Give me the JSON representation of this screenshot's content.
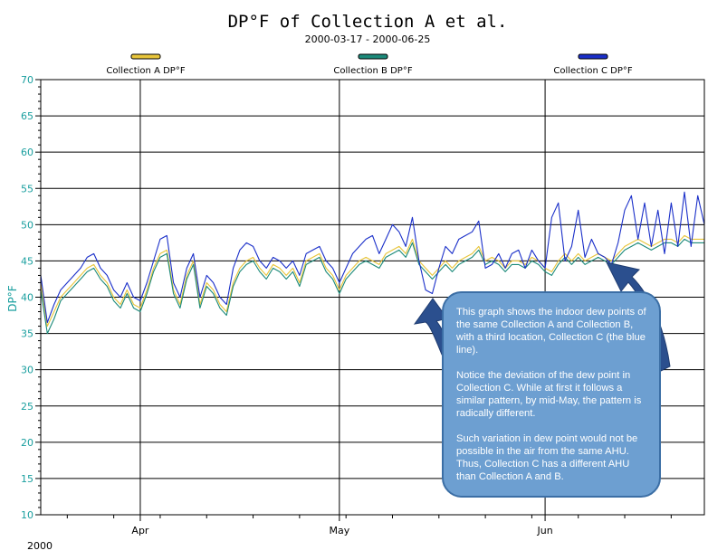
{
  "chart_data": {
    "type": "line",
    "title": "DP°F of Collection A et al.",
    "subtitle": "2000-03-17 - 2000-06-25",
    "ylabel": "DP°F",
    "ylim": [
      10,
      70
    ],
    "yticks": [
      10,
      15,
      20,
      25,
      30,
      35,
      40,
      45,
      50,
      55,
      60,
      65,
      70
    ],
    "xlim_days": [
      0,
      100
    ],
    "xtick_labels": [
      {
        "label": "Apr",
        "day": 15
      },
      {
        "label": "May",
        "day": 45
      },
      {
        "label": "Jun",
        "day": 76
      }
    ],
    "year_label": "2000",
    "legend_position": "top",
    "series": [
      {
        "name": "Collection A  DP°F",
        "color": "#e8c53a",
        "points": [
          [
            0,
            42
          ],
          [
            1,
            36
          ],
          [
            2,
            38
          ],
          [
            3,
            40
          ],
          [
            4,
            41
          ],
          [
            5,
            42
          ],
          [
            6,
            43
          ],
          [
            7,
            44
          ],
          [
            8,
            44.5
          ],
          [
            9,
            43
          ],
          [
            10,
            42
          ],
          [
            11,
            40
          ],
          [
            12,
            39
          ],
          [
            13,
            41
          ],
          [
            14,
            39
          ],
          [
            15,
            38.5
          ],
          [
            16,
            41
          ],
          [
            17,
            44
          ],
          [
            18,
            46
          ],
          [
            19,
            46.5
          ],
          [
            20,
            41
          ],
          [
            21,
            39
          ],
          [
            22,
            43
          ],
          [
            23,
            45
          ],
          [
            24,
            39
          ],
          [
            25,
            42
          ],
          [
            26,
            41
          ],
          [
            27,
            39
          ],
          [
            28,
            38
          ],
          [
            29,
            42
          ],
          [
            30,
            44
          ],
          [
            31,
            45
          ],
          [
            32,
            45.5
          ],
          [
            33,
            44
          ],
          [
            34,
            43
          ],
          [
            35,
            44.5
          ],
          [
            36,
            44
          ],
          [
            37,
            43
          ],
          [
            38,
            44
          ],
          [
            39,
            42
          ],
          [
            40,
            45
          ],
          [
            41,
            45.5
          ],
          [
            42,
            46
          ],
          [
            43,
            44
          ],
          [
            44,
            43
          ],
          [
            45,
            41
          ],
          [
            46,
            43
          ],
          [
            47,
            44
          ],
          [
            48,
            45
          ],
          [
            49,
            45.5
          ],
          [
            50,
            45
          ],
          [
            51,
            44.5
          ],
          [
            52,
            46
          ],
          [
            53,
            46.5
          ],
          [
            54,
            47
          ],
          [
            55,
            46
          ],
          [
            56,
            48
          ],
          [
            57,
            45
          ],
          [
            58,
            44
          ],
          [
            59,
            43
          ],
          [
            60,
            44
          ],
          [
            61,
            45
          ],
          [
            62,
            44
          ],
          [
            63,
            45
          ],
          [
            64,
            45.5
          ],
          [
            65,
            46
          ],
          [
            66,
            47
          ],
          [
            67,
            45
          ],
          [
            68,
            45.5
          ],
          [
            69,
            45
          ],
          [
            70,
            44
          ],
          [
            71,
            45
          ],
          [
            72,
            45
          ],
          [
            73,
            44.5
          ],
          [
            74,
            45.5
          ],
          [
            75,
            45
          ],
          [
            76,
            44
          ],
          [
            77,
            43.5
          ],
          [
            78,
            45
          ],
          [
            79,
            46
          ],
          [
            80,
            45
          ],
          [
            81,
            46
          ],
          [
            82,
            45
          ],
          [
            83,
            45.5
          ],
          [
            84,
            46
          ],
          [
            85,
            45.5
          ],
          [
            86,
            45
          ],
          [
            87,
            46
          ],
          [
            88,
            47
          ],
          [
            89,
            47.5
          ],
          [
            90,
            48
          ],
          [
            91,
            47.5
          ],
          [
            92,
            47
          ],
          [
            93,
            47.5
          ],
          [
            94,
            48
          ],
          [
            95,
            48
          ],
          [
            96,
            47.5
          ],
          [
            97,
            48.5
          ],
          [
            98,
            48
          ],
          [
            99,
            48
          ],
          [
            100,
            48
          ]
        ]
      },
      {
        "name": "Collection B  DP°F",
        "color": "#1c8a7a",
        "points": [
          [
            0,
            41
          ],
          [
            1,
            35
          ],
          [
            2,
            37
          ],
          [
            3,
            39.5
          ],
          [
            4,
            40.5
          ],
          [
            5,
            41.5
          ],
          [
            6,
            42.5
          ],
          [
            7,
            43.5
          ],
          [
            8,
            44
          ],
          [
            9,
            42.5
          ],
          [
            10,
            41.5
          ],
          [
            11,
            39.5
          ],
          [
            12,
            38.5
          ],
          [
            13,
            40.5
          ],
          [
            14,
            38.5
          ],
          [
            15,
            38
          ],
          [
            16,
            40.5
          ],
          [
            17,
            43.5
          ],
          [
            18,
            45.5
          ],
          [
            19,
            46
          ],
          [
            20,
            40.5
          ],
          [
            21,
            38.5
          ],
          [
            22,
            42.5
          ],
          [
            23,
            44.5
          ],
          [
            24,
            38.5
          ],
          [
            25,
            41.5
          ],
          [
            26,
            40.5
          ],
          [
            27,
            38.5
          ],
          [
            28,
            37.5
          ],
          [
            29,
            41.5
          ],
          [
            30,
            43.5
          ],
          [
            31,
            44.5
          ],
          [
            32,
            45
          ],
          [
            33,
            43.5
          ],
          [
            34,
            42.5
          ],
          [
            35,
            44
          ],
          [
            36,
            43.5
          ],
          [
            37,
            42.5
          ],
          [
            38,
            43.5
          ],
          [
            39,
            41.5
          ],
          [
            40,
            44.5
          ],
          [
            41,
            45
          ],
          [
            42,
            45.5
          ],
          [
            43,
            43.5
          ],
          [
            44,
            42.5
          ],
          [
            45,
            40.5
          ],
          [
            46,
            42.5
          ],
          [
            47,
            43.5
          ],
          [
            48,
            44.5
          ],
          [
            49,
            45
          ],
          [
            50,
            44.5
          ],
          [
            51,
            44
          ],
          [
            52,
            45.5
          ],
          [
            53,
            46
          ],
          [
            54,
            46.5
          ],
          [
            55,
            45.5
          ],
          [
            56,
            47.5
          ],
          [
            57,
            44.5
          ],
          [
            58,
            43.5
          ],
          [
            59,
            42.5
          ],
          [
            60,
            43.5
          ],
          [
            61,
            44.5
          ],
          [
            62,
            43.5
          ],
          [
            63,
            44.5
          ],
          [
            64,
            45
          ],
          [
            65,
            45.5
          ],
          [
            66,
            46.5
          ],
          [
            67,
            44.5
          ],
          [
            68,
            45
          ],
          [
            69,
            44.5
          ],
          [
            70,
            43.5
          ],
          [
            71,
            44.5
          ],
          [
            72,
            44.5
          ],
          [
            73,
            44
          ],
          [
            74,
            45
          ],
          [
            75,
            44.5
          ],
          [
            76,
            43.5
          ],
          [
            77,
            43
          ],
          [
            78,
            44.5
          ],
          [
            79,
            45.5
          ],
          [
            80,
            44.5
          ],
          [
            81,
            45.5
          ],
          [
            82,
            44.5
          ],
          [
            83,
            45
          ],
          [
            84,
            45.5
          ],
          [
            85,
            45
          ],
          [
            86,
            44.5
          ],
          [
            87,
            45.5
          ],
          [
            88,
            46.5
          ],
          [
            89,
            47
          ],
          [
            90,
            47.5
          ],
          [
            91,
            47
          ],
          [
            92,
            46.5
          ],
          [
            93,
            47
          ],
          [
            94,
            47.5
          ],
          [
            95,
            47.5
          ],
          [
            96,
            47
          ],
          [
            97,
            48
          ],
          [
            98,
            47.5
          ],
          [
            99,
            47.5
          ],
          [
            100,
            47.5
          ]
        ]
      },
      {
        "name": "Collection C  DP°F",
        "color": "#1a2fc9",
        "points": [
          [
            0,
            43
          ],
          [
            1,
            36.5
          ],
          [
            2,
            39
          ],
          [
            3,
            41
          ],
          [
            4,
            42
          ],
          [
            5,
            43
          ],
          [
            6,
            44
          ],
          [
            7,
            45.5
          ],
          [
            8,
            46
          ],
          [
            9,
            44
          ],
          [
            10,
            43
          ],
          [
            11,
            41
          ],
          [
            12,
            40
          ],
          [
            13,
            42
          ],
          [
            14,
            40
          ],
          [
            15,
            39.5
          ],
          [
            16,
            42
          ],
          [
            17,
            45
          ],
          [
            18,
            48
          ],
          [
            19,
            48.5
          ],
          [
            20,
            42
          ],
          [
            21,
            40
          ],
          [
            22,
            44
          ],
          [
            23,
            46
          ],
          [
            24,
            40
          ],
          [
            25,
            43
          ],
          [
            26,
            42
          ],
          [
            27,
            40
          ],
          [
            28,
            39
          ],
          [
            29,
            44
          ],
          [
            30,
            46.5
          ],
          [
            31,
            47.5
          ],
          [
            32,
            47
          ],
          [
            33,
            45
          ],
          [
            34,
            44
          ],
          [
            35,
            45.5
          ],
          [
            36,
            45
          ],
          [
            37,
            44
          ],
          [
            38,
            45
          ],
          [
            39,
            43
          ],
          [
            40,
            46
          ],
          [
            41,
            46.5
          ],
          [
            42,
            47
          ],
          [
            43,
            45
          ],
          [
            44,
            44
          ],
          [
            45,
            42
          ],
          [
            46,
            44
          ],
          [
            47,
            46
          ],
          [
            48,
            47
          ],
          [
            49,
            48
          ],
          [
            50,
            48.5
          ],
          [
            51,
            46
          ],
          [
            52,
            48
          ],
          [
            53,
            50
          ],
          [
            54,
            49
          ],
          [
            55,
            47
          ],
          [
            56,
            51
          ],
          [
            57,
            45
          ],
          [
            58,
            41
          ],
          [
            59,
            40.5
          ],
          [
            60,
            44
          ],
          [
            61,
            47
          ],
          [
            62,
            46
          ],
          [
            63,
            48
          ],
          [
            64,
            48.5
          ],
          [
            65,
            49
          ],
          [
            66,
            50.5
          ],
          [
            67,
            44
          ],
          [
            68,
            44.5
          ],
          [
            69,
            46
          ],
          [
            70,
            44
          ],
          [
            71,
            46
          ],
          [
            72,
            46.5
          ],
          [
            73,
            44
          ],
          [
            74,
            46.5
          ],
          [
            75,
            45
          ],
          [
            76,
            44
          ],
          [
            77,
            51
          ],
          [
            78,
            53
          ],
          [
            79,
            45
          ],
          [
            80,
            47
          ],
          [
            81,
            52
          ],
          [
            82,
            45.5
          ],
          [
            83,
            48
          ],
          [
            84,
            46
          ],
          [
            85,
            45.5
          ],
          [
            86,
            44.5
          ],
          [
            87,
            47.5
          ],
          [
            88,
            52
          ],
          [
            89,
            54
          ],
          [
            90,
            48
          ],
          [
            91,
            53
          ],
          [
            92,
            47
          ],
          [
            93,
            52
          ],
          [
            94,
            46
          ],
          [
            95,
            53
          ],
          [
            96,
            47
          ],
          [
            97,
            54.5
          ],
          [
            98,
            47
          ],
          [
            99,
            54
          ],
          [
            100,
            50
          ]
        ]
      }
    ]
  },
  "callout": {
    "paragraph1": "This graph shows the indoor dew points of the same Collection A and Collection B, with a third location, Collection C (the blue line).",
    "paragraph2": "Notice the deviation of the dew point in Collection C. While at first it follows a similar pattern, by mid-May, the pattern is radically different.",
    "paragraph3": "Such variation in dew point would not be possible in the air from the same AHU. Thus, Collection C has a different AHU than Collection A and B."
  }
}
